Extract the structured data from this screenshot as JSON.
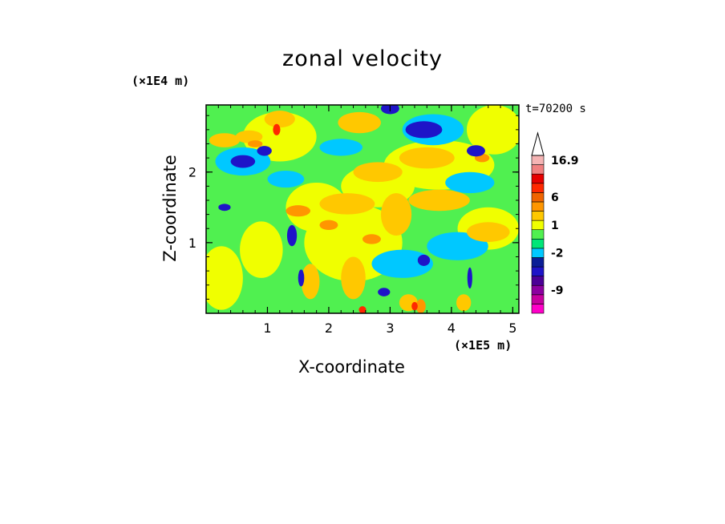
{
  "chart_data": {
    "type": "heatmap",
    "title": "zonal velocity",
    "xlabel": "X-coordinate",
    "ylabel": "Z-coordinate",
    "x_unit": "(×1E5 m)",
    "y_unit": "(×1E4 m)",
    "time_label": "t=70200 s",
    "xlim": [
      0,
      5.1
    ],
    "ylim": [
      0,
      2.95
    ],
    "x_ticks": [
      1,
      2,
      3,
      4,
      5
    ],
    "y_ticks": [
      1,
      2
    ],
    "colorbar": {
      "labels": [
        "16.9",
        "6",
        "1",
        "-2",
        "-9"
      ],
      "levels": [
        {
          "color": "#ff00c8",
          "label": ""
        },
        {
          "color": "#c800a0",
          "label": ""
        },
        {
          "color": "#8c00a0",
          "label": "-9"
        },
        {
          "color": "#4b0096",
          "label": ""
        },
        {
          "color": "#1e14c8",
          "label": ""
        },
        {
          "color": "#0a1e96",
          "label": ""
        },
        {
          "color": "#00c8ff",
          "label": "-2"
        },
        {
          "color": "#00e678",
          "label": ""
        },
        {
          "color": "#50f050",
          "label": ""
        },
        {
          "color": "#f0ff00",
          "label": "1"
        },
        {
          "color": "#ffc800",
          "label": ""
        },
        {
          "color": "#ff9600",
          "label": ""
        },
        {
          "color": "#f06400",
          "label": "6"
        },
        {
          "color": "#ff2800",
          "label": ""
        },
        {
          "color": "#e60000",
          "label": ""
        },
        {
          "color": "#f08080",
          "label": ""
        },
        {
          "color": "#f5b4b4",
          "label": "16.9"
        }
      ]
    },
    "background_color": "#50f050",
    "regions": [
      {
        "x": 0.25,
        "z": 0.5,
        "rx": 0.35,
        "rz": 0.45,
        "color": "#f0ff00"
      },
      {
        "x": 0.9,
        "z": 0.9,
        "rx": 0.35,
        "rz": 0.4,
        "color": "#f0ff00"
      },
      {
        "x": 2.4,
        "z": 1.0,
        "rx": 0.8,
        "rz": 0.55,
        "color": "#f0ff00"
      },
      {
        "x": 4.6,
        "z": 1.2,
        "rx": 0.5,
        "rz": 0.3,
        "color": "#f0ff00"
      },
      {
        "x": 4.7,
        "z": 2.6,
        "rx": 0.45,
        "rz": 0.35,
        "color": "#f0ff00"
      },
      {
        "x": 3.8,
        "z": 2.1,
        "rx": 0.9,
        "rz": 0.35,
        "color": "#f0ff00"
      },
      {
        "x": 1.2,
        "z": 2.5,
        "rx": 0.6,
        "rz": 0.35,
        "color": "#f0ff00"
      },
      {
        "x": 2.8,
        "z": 1.8,
        "rx": 0.6,
        "rz": 0.3,
        "color": "#f0ff00"
      },
      {
        "x": 1.8,
        "z": 1.5,
        "rx": 0.5,
        "rz": 0.35,
        "color": "#f0ff00"
      },
      {
        "x": 0.6,
        "z": 2.15,
        "rx": 0.45,
        "rz": 0.2,
        "color": "#00c8ff"
      },
      {
        "x": 3.2,
        "z": 0.7,
        "rx": 0.5,
        "rz": 0.2,
        "color": "#00c8ff"
      },
      {
        "x": 4.1,
        "z": 0.95,
        "rx": 0.5,
        "rz": 0.2,
        "color": "#00c8ff"
      },
      {
        "x": 3.7,
        "z": 2.6,
        "rx": 0.5,
        "rz": 0.22,
        "color": "#00c8ff"
      },
      {
        "x": 4.3,
        "z": 1.85,
        "rx": 0.4,
        "rz": 0.15,
        "color": "#00c8ff"
      },
      {
        "x": 1.3,
        "z": 1.9,
        "rx": 0.3,
        "rz": 0.12,
        "color": "#00c8ff"
      },
      {
        "x": 2.2,
        "z": 2.35,
        "rx": 0.35,
        "rz": 0.12,
        "color": "#00c8ff"
      },
      {
        "x": 1.2,
        "z": 2.75,
        "rx": 0.25,
        "rz": 0.12,
        "color": "#ffc800"
      },
      {
        "x": 0.3,
        "z": 2.45,
        "rx": 0.25,
        "rz": 0.1,
        "color": "#ffc800"
      },
      {
        "x": 0.7,
        "z": 2.5,
        "rx": 0.22,
        "rz": 0.09,
        "color": "#ffc800"
      },
      {
        "x": 2.3,
        "z": 1.55,
        "rx": 0.45,
        "rz": 0.15,
        "color": "#ffc800"
      },
      {
        "x": 2.8,
        "z": 2.0,
        "rx": 0.4,
        "rz": 0.14,
        "color": "#ffc800"
      },
      {
        "x": 3.1,
        "z": 1.4,
        "rx": 0.25,
        "rz": 0.3,
        "color": "#ffc800"
      },
      {
        "x": 3.6,
        "z": 2.2,
        "rx": 0.45,
        "rz": 0.15,
        "color": "#ffc800"
      },
      {
        "x": 3.8,
        "z": 1.6,
        "rx": 0.5,
        "rz": 0.15,
        "color": "#ffc800"
      },
      {
        "x": 4.6,
        "z": 1.15,
        "rx": 0.35,
        "rz": 0.14,
        "color": "#ffc800"
      },
      {
        "x": 1.7,
        "z": 0.45,
        "rx": 0.15,
        "rz": 0.25,
        "color": "#ffc800"
      },
      {
        "x": 2.4,
        "z": 0.5,
        "rx": 0.2,
        "rz": 0.3,
        "color": "#ffc800"
      },
      {
        "x": 3.3,
        "z": 0.15,
        "rx": 0.15,
        "rz": 0.12,
        "color": "#ffc800"
      },
      {
        "x": 4.2,
        "z": 0.15,
        "rx": 0.12,
        "rz": 0.12,
        "color": "#ffc800"
      },
      {
        "x": 2.5,
        "z": 2.7,
        "rx": 0.35,
        "rz": 0.15,
        "color": "#ffc800"
      },
      {
        "x": 1.5,
        "z": 1.45,
        "rx": 0.2,
        "rz": 0.08,
        "color": "#ff9600"
      },
      {
        "x": 2.0,
        "z": 1.25,
        "rx": 0.15,
        "rz": 0.07,
        "color": "#ff9600"
      },
      {
        "x": 2.7,
        "z": 1.05,
        "rx": 0.15,
        "rz": 0.07,
        "color": "#ff9600"
      },
      {
        "x": 3.5,
        "z": 0.1,
        "rx": 0.08,
        "rz": 0.1,
        "color": "#ff9600"
      },
      {
        "x": 4.5,
        "z": 2.2,
        "rx": 0.12,
        "rz": 0.06,
        "color": "#ff9600"
      },
      {
        "x": 0.8,
        "z": 2.4,
        "rx": 0.12,
        "rz": 0.05,
        "color": "#ff9600"
      },
      {
        "x": 0.6,
        "z": 2.15,
        "rx": 0.2,
        "rz": 0.09,
        "color": "#1e14c8"
      },
      {
        "x": 0.95,
        "z": 2.3,
        "rx": 0.12,
        "rz": 0.07,
        "color": "#1e14c8"
      },
      {
        "x": 3.55,
        "z": 2.6,
        "rx": 0.3,
        "rz": 0.12,
        "color": "#1e14c8"
      },
      {
        "x": 4.4,
        "z": 2.3,
        "rx": 0.15,
        "rz": 0.08,
        "color": "#1e14c8"
      },
      {
        "x": 1.4,
        "z": 1.1,
        "rx": 0.08,
        "rz": 0.15,
        "color": "#1e14c8"
      },
      {
        "x": 1.55,
        "z": 0.5,
        "rx": 0.05,
        "rz": 0.12,
        "color": "#1e14c8"
      },
      {
        "x": 3.55,
        "z": 0.75,
        "rx": 0.1,
        "rz": 0.08,
        "color": "#1e14c8"
      },
      {
        "x": 4.3,
        "z": 0.5,
        "rx": 0.04,
        "rz": 0.15,
        "color": "#1e14c8"
      },
      {
        "x": 3.0,
        "z": 2.9,
        "rx": 0.15,
        "rz": 0.08,
        "color": "#1e14c8"
      },
      {
        "x": 0.3,
        "z": 1.5,
        "rx": 0.1,
        "rz": 0.05,
        "color": "#1e14c8"
      },
      {
        "x": 2.9,
        "z": 0.3,
        "rx": 0.1,
        "rz": 0.06,
        "color": "#1e14c8"
      },
      {
        "x": 3.4,
        "z": 0.1,
        "rx": 0.05,
        "rz": 0.06,
        "color": "#ff2800"
      },
      {
        "x": 1.15,
        "z": 2.6,
        "rx": 0.06,
        "rz": 0.08,
        "color": "#ff2800"
      },
      {
        "x": 2.55,
        "z": 0.05,
        "rx": 0.06,
        "rz": 0.05,
        "color": "#ff2800"
      }
    ]
  }
}
